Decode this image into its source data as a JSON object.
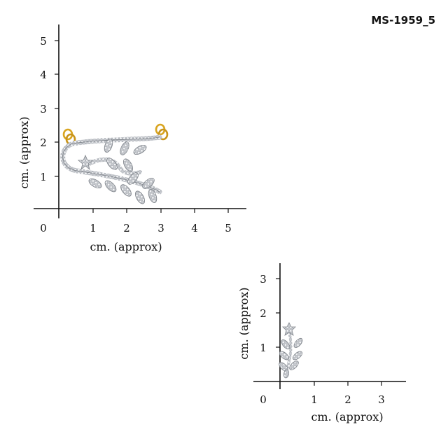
{
  "product_code": "MS-1959_5",
  "scale_large": {
    "x_ticks": [
      "1",
      "2",
      "3",
      "4",
      "5"
    ],
    "y_ticks": [
      "1",
      "2",
      "3",
      "4",
      "5"
    ],
    "origin": "0",
    "x_label": "cm. (approx)",
    "y_label": "cm. (approx)"
  },
  "scale_small": {
    "x_ticks": [
      "1",
      "2",
      "3"
    ],
    "y_ticks": [
      "1",
      "2",
      "3"
    ],
    "origin": "0",
    "x_label": "cm. (approx)",
    "y_label": "cm. (approx)"
  },
  "colors": {
    "gold": "#d9a520",
    "silver": "#b8bcc2",
    "stone": "#eef0f3"
  }
}
